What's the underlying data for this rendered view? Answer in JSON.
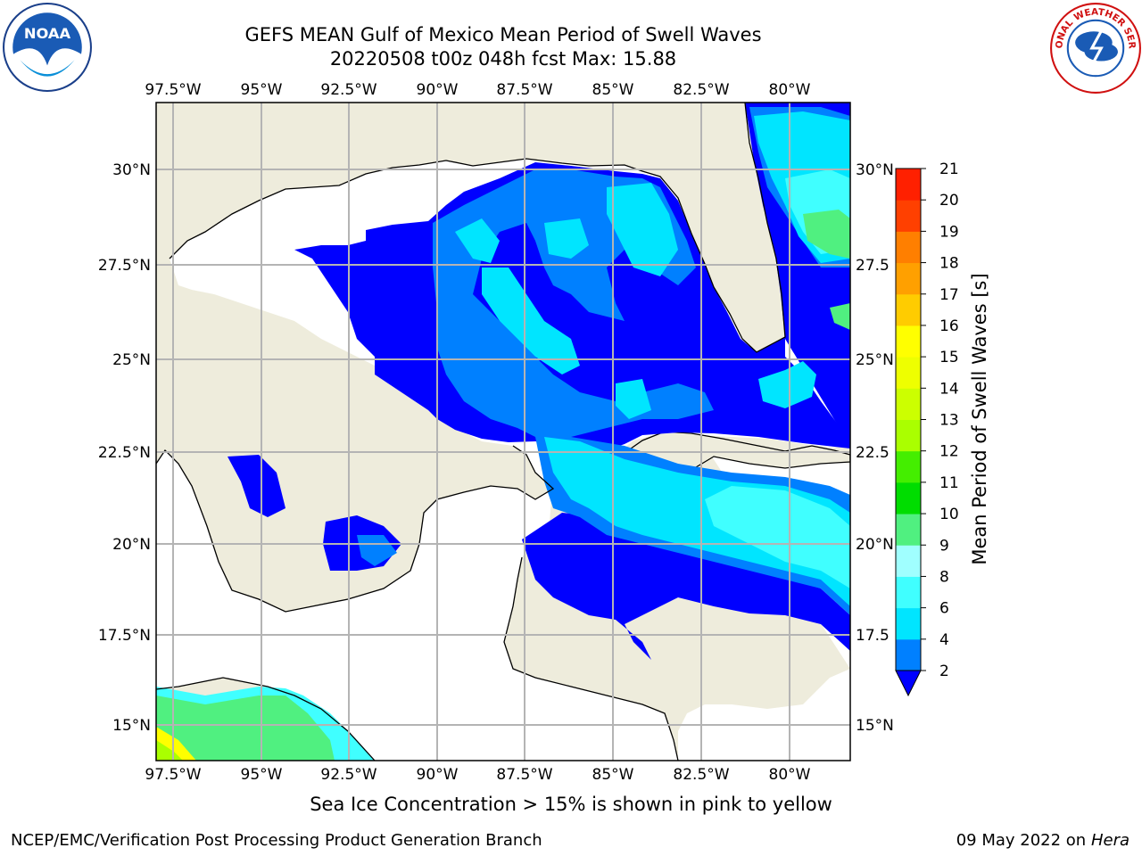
{
  "title": {
    "line1": "GEFS MEAN Gulf of Mexico Mean Period of Swell Waves",
    "line2": "20220508 t00z 048h fcst   Max: 15.88"
  },
  "subtitle": "Sea Ice Concentration > 15% is shown in pink to yellow",
  "footer": {
    "left": "NCEP/EMC/Verification Post Processing Product Generation Branch",
    "right_date": "09 May 2022 on",
    "right_host": "Hera"
  },
  "logos": {
    "noaa": "NOAA",
    "nws": "NATIONAL WEATHER SERVICE"
  },
  "map": {
    "lon_range": [
      -98,
      -78.3
    ],
    "lat_range": [
      14,
      31.5
    ],
    "lon_ticks": [
      "97.5°W",
      "95°W",
      "92.5°W",
      "90°W",
      "87.5°W",
      "85°W",
      "82.5°W",
      "80°W"
    ],
    "lat_ticks_left": [
      "30°N",
      "27.5°N",
      "25°N",
      "22.5°N",
      "20°N",
      "17.5°N",
      "15°N"
    ],
    "lat_ticks_right": [
      "30°N",
      "27.5",
      "25°N",
      "22.5",
      "20°N",
      "17.5",
      "15°N"
    ],
    "land_color": "#eeecdc",
    "ocean_color": "#ffffff",
    "grid_color": "#b4b4b4"
  },
  "colorbar": {
    "label": "Mean Period of Swell Waves [s]",
    "ticks": [
      "21",
      "20",
      "19",
      "18",
      "17",
      "16",
      "15",
      "14",
      "13",
      "12",
      "11",
      "10",
      "9",
      "8",
      "6",
      "4",
      "2"
    ],
    "colors": [
      "#0000ff",
      "#0080ff",
      "#00e5ff",
      "#40ffff",
      "#a0ffff",
      "#50f080",
      "#00dd00",
      "#44ee00",
      "#aaff00",
      "#ccff00",
      "#eeff00",
      "#ffff00",
      "#ffcc00",
      "#ffa000",
      "#ff7f00",
      "#ff4000",
      "#ff2000",
      "#ff0000"
    ]
  }
}
